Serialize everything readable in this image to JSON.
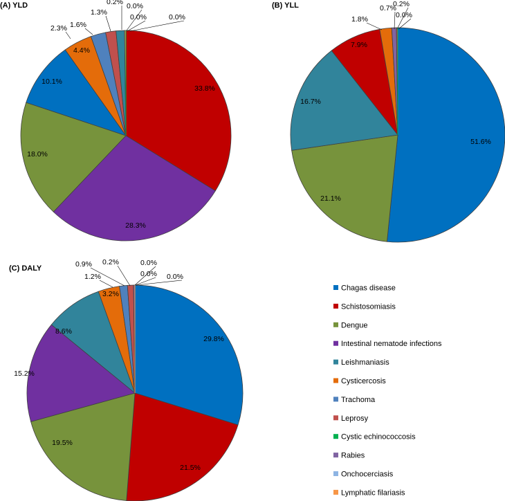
{
  "chart_data": [
    {
      "type": "pie",
      "title": "(A) YLD",
      "slices": [
        {
          "category": "Schistosomiasis",
          "value": 33.8,
          "label": "33.8%"
        },
        {
          "category": "Intestinal nematode infections",
          "value": 28.3,
          "label": "28.3%"
        },
        {
          "category": "Dengue",
          "value": 18.0,
          "label": "18.0%"
        },
        {
          "category": "Chagas disease",
          "value": 10.1,
          "label": "10.1%"
        },
        {
          "category": "Cysticercosis",
          "value": 4.4,
          "label": "4.4%"
        },
        {
          "category": "Trachoma",
          "value": 2.3,
          "label": "2.3%"
        },
        {
          "category": "Leprosy",
          "value": 1.6,
          "label": "1.6%"
        },
        {
          "category": "Leishmaniasis",
          "value": 1.3,
          "label": "1.3%"
        },
        {
          "category": "Lymphatic filariasis",
          "value": 0.2,
          "label": "0.2%"
        },
        {
          "category": "Onchocerciasis",
          "value": 0.0,
          "label": "0.0%"
        },
        {
          "category": "Rabies",
          "value": 0.0,
          "label": "0.0%"
        },
        {
          "category": "Cystic echinococcosis",
          "value": 0.0,
          "label": "0.0%"
        }
      ]
    },
    {
      "type": "pie",
      "title": "(B) YLL",
      "slices": [
        {
          "category": "Chagas disease",
          "value": 51.6,
          "label": "51.6%"
        },
        {
          "category": "Dengue",
          "value": 21.1,
          "label": "21.1%"
        },
        {
          "category": "Leishmaniasis",
          "value": 16.7,
          "label": "16.7%"
        },
        {
          "category": "Schistosomiasis",
          "value": 7.9,
          "label": "7.9%"
        },
        {
          "category": "Cysticercosis",
          "value": 1.8,
          "label": "1.8%"
        },
        {
          "category": "Rabies",
          "value": 0.7,
          "label": "0.7%"
        },
        {
          "category": "Leprosy",
          "value": 0.2,
          "label": "0.2%"
        },
        {
          "category": "Cystic echinococcosis",
          "value": 0.0,
          "label": "0.0%"
        }
      ]
    },
    {
      "type": "pie",
      "title": "(C) DALY",
      "slices": [
        {
          "category": "Chagas disease",
          "value": 29.8,
          "label": "29.8%"
        },
        {
          "category": "Schistosomiasis",
          "value": 21.5,
          "label": "21.5%"
        },
        {
          "category": "Dengue",
          "value": 19.5,
          "label": "19.5%"
        },
        {
          "category": "Intestinal nematode infections",
          "value": 15.2,
          "label": "15.2%"
        },
        {
          "category": "Leishmaniasis",
          "value": 8.6,
          "label": "8.6%"
        },
        {
          "category": "Cysticercosis",
          "value": 3.2,
          "label": "3.2%"
        },
        {
          "category": "Trachoma",
          "value": 1.2,
          "label": "1.2%"
        },
        {
          "category": "Leprosy",
          "value": 0.9,
          "label": "0.9%"
        },
        {
          "category": "Rabies",
          "value": 0.2,
          "label": "0.2%"
        },
        {
          "category": "Cystic echinococcosis",
          "value": 0.0,
          "label": "0.0%"
        },
        {
          "category": "Onchocerciasis",
          "value": 0.0,
          "label": "0.0%"
        },
        {
          "category": "Lymphatic filariasis",
          "value": 0.0,
          "label": "0.0%"
        }
      ]
    }
  ],
  "legend": [
    {
      "label": "Chagas disease",
      "color": "#0070C0"
    },
    {
      "label": "Schistosomiasis",
      "color": "#C00000"
    },
    {
      "label": "Dengue",
      "color": "#77933C"
    },
    {
      "label": "Intestinal nematode infections",
      "color": "#7030A0"
    },
    {
      "label": "Leishmaniasis",
      "color": "#31849B"
    },
    {
      "label": "Cysticercosis",
      "color": "#E46C0A"
    },
    {
      "label": "Trachoma",
      "color": "#4F81BD"
    },
    {
      "label": "Leprosy",
      "color": "#C0504D"
    },
    {
      "label": "Cystic echinococcosis",
      "color": "#00B050"
    },
    {
      "label": "Rabies",
      "color": "#8064A2"
    },
    {
      "label": "Onchocerciasis",
      "color": "#8EB4E3"
    },
    {
      "label": "Lymphatic filariasis",
      "color": "#F79646"
    }
  ]
}
